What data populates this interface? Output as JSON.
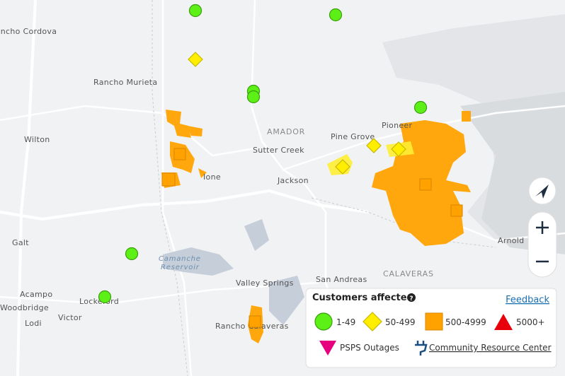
{
  "map": {
    "places": [
      "Rancho Cordova",
      "Rancho Murieta",
      "Wilton",
      "Galt",
      "Acampo",
      "Woodbridge",
      "Lodi",
      "Victor",
      "Lockeford",
      "AMADOR",
      "Sutter Creek",
      "Ione",
      "Jackson",
      "Pine Grove",
      "Pioneer",
      "Camanche",
      "Reservoir",
      "Valley Springs",
      "San Andreas",
      "CALAVERAS",
      "Rancho Calaveras",
      "Arnold"
    ]
  },
  "legend": {
    "title": "Customers affected",
    "feedback": "Feedback",
    "categories": [
      "1-49",
      "50-499",
      "500-4999",
      "5000+"
    ],
    "psps": "PSPS Outages",
    "resource_center": "Community Resource Center"
  }
}
